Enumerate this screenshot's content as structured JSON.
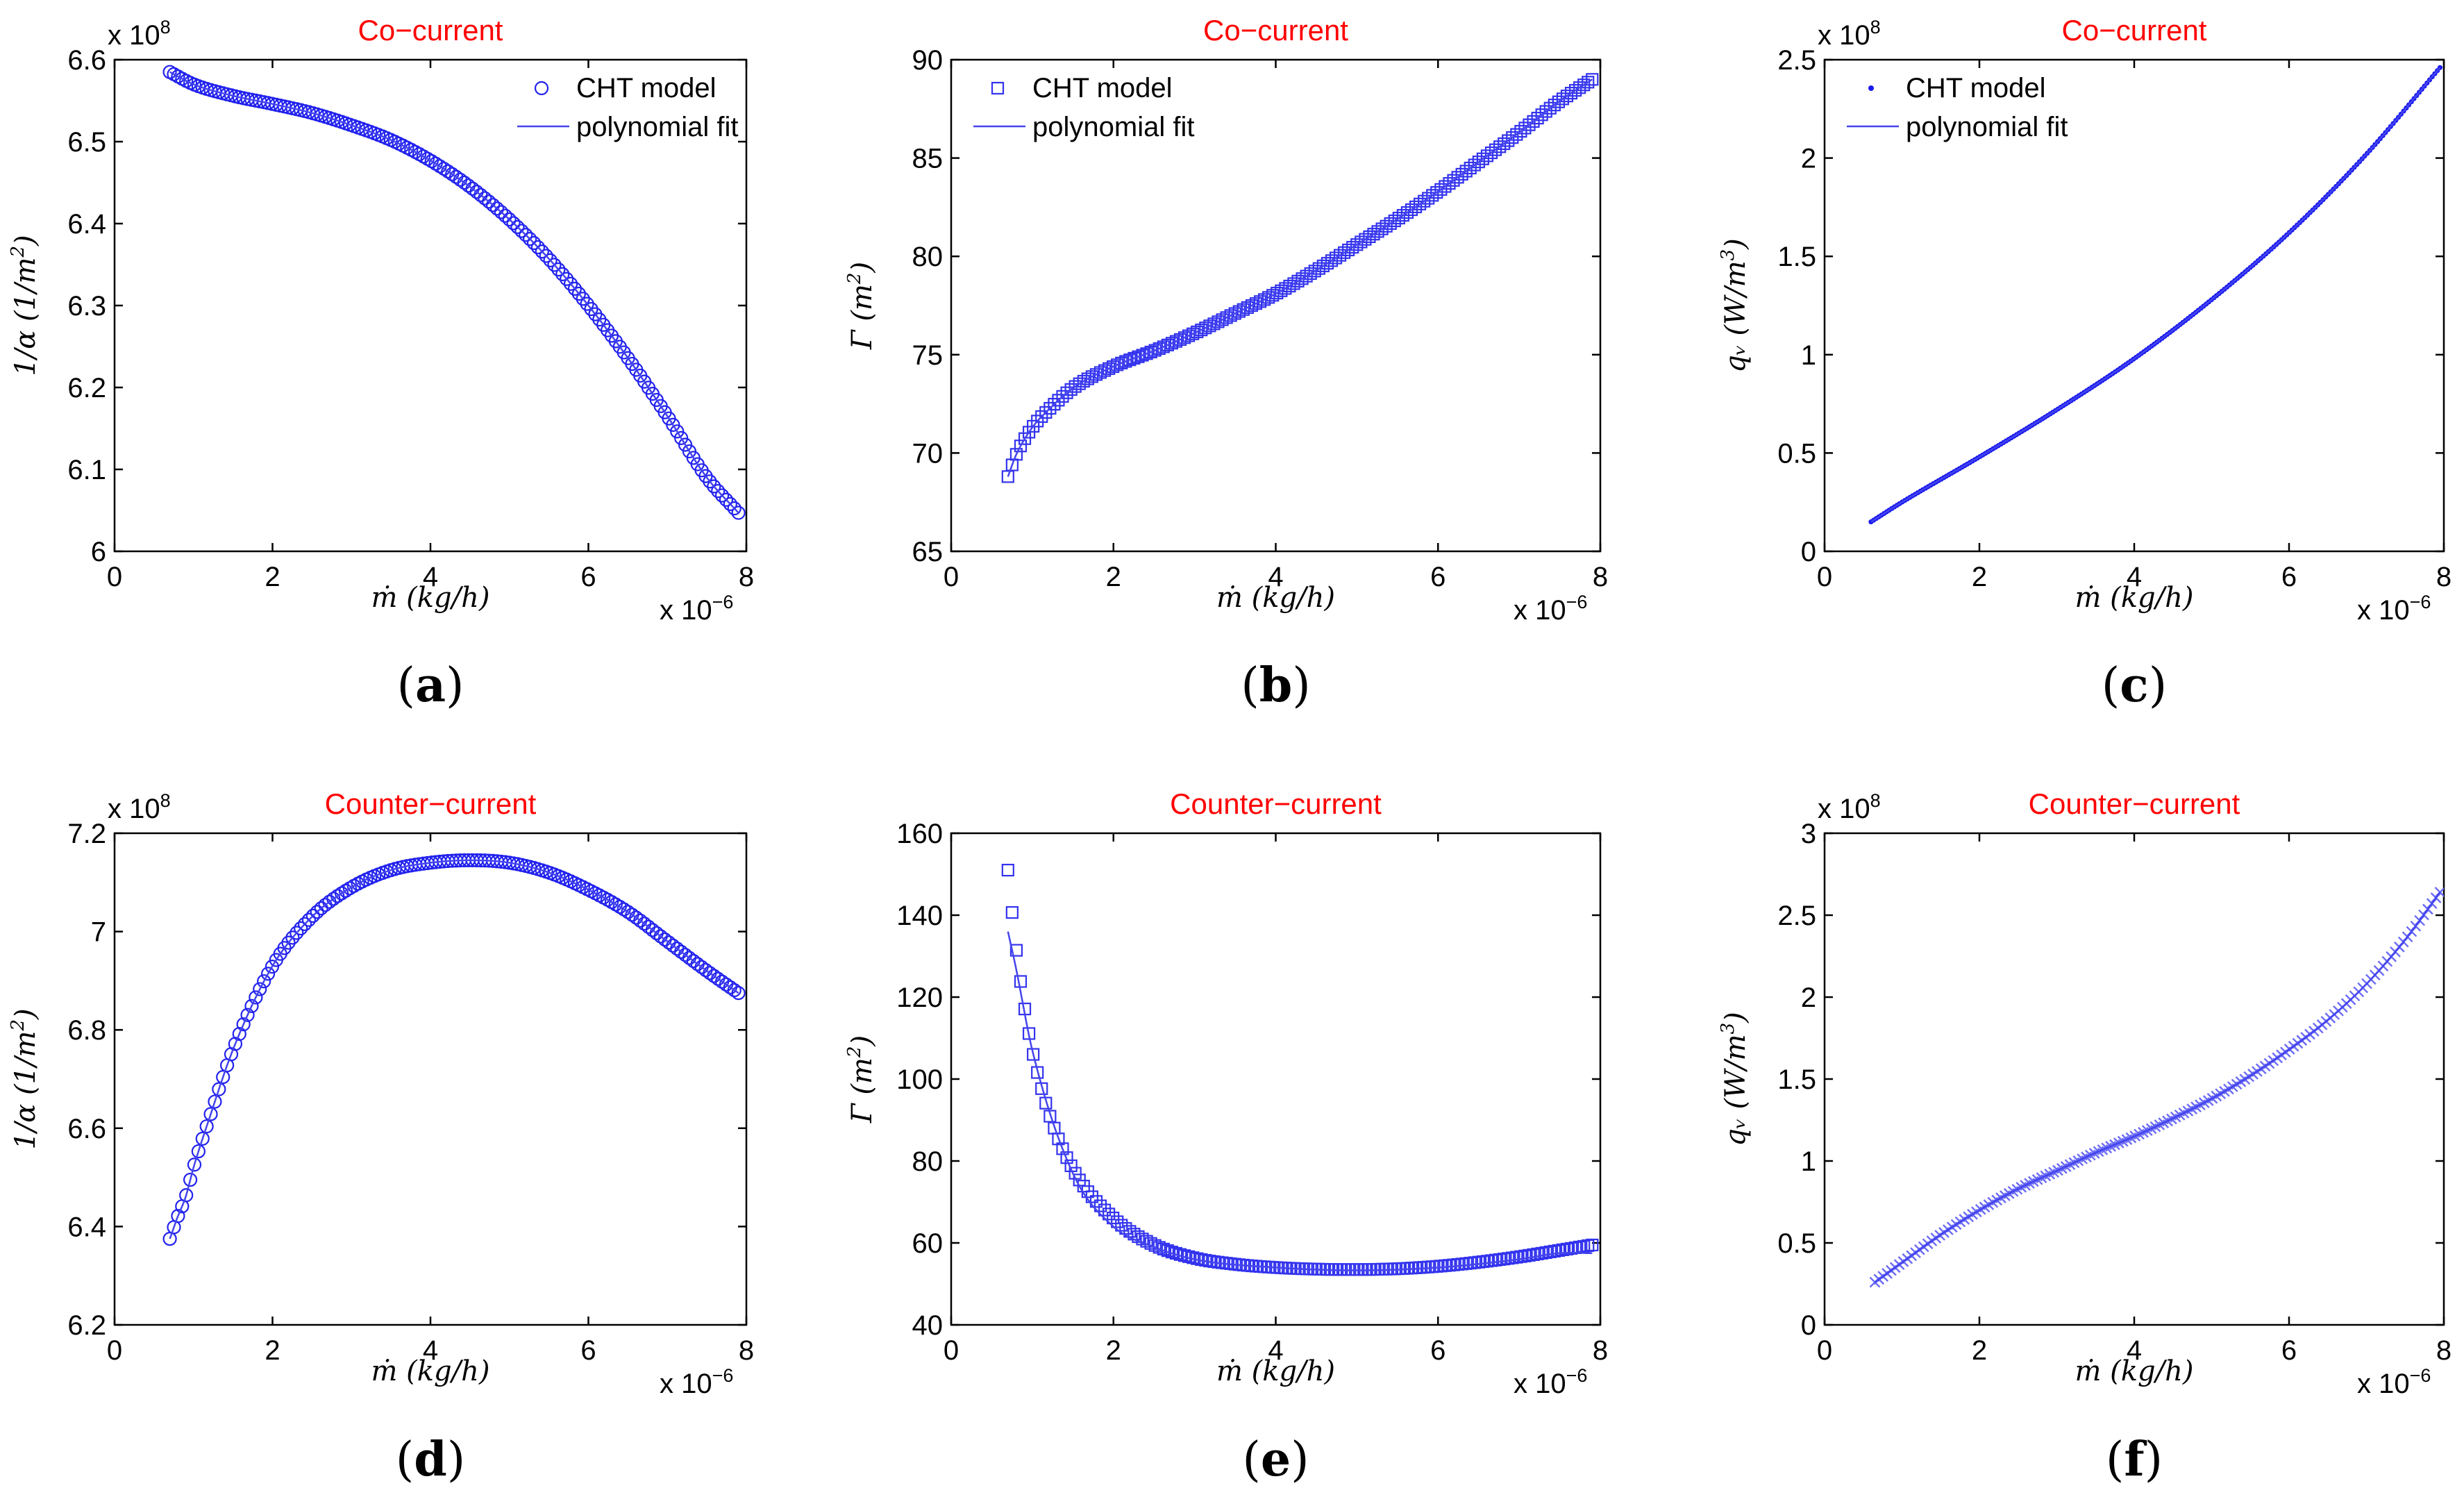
{
  "figure": {
    "panels": [
      {
        "id": "a",
        "letter": "a",
        "title": "Co−current",
        "ylabel_main": "(1/m",
        "ylabel_sup": "2",
        "ylabel_tail": ")",
        "ylabel_prefix": "1/α",
        "xlabel": "ṁ (kg/h)",
        "x_exponent": "x 10",
        "x_exponent_power": "−6",
        "y_exponent": "x 10",
        "y_exponent_power": "8",
        "marker": "circle",
        "legend": [
          "CHT model",
          "polynomial fit"
        ]
      },
      {
        "id": "b",
        "letter": "b",
        "title": "Co−current",
        "ylabel_main": "Γ (m",
        "ylabel_sup": "2",
        "ylabel_tail": ")",
        "ylabel_prefix": "",
        "xlabel": "ṁ (kg/h)",
        "x_exponent": "x 10",
        "x_exponent_power": "−6",
        "y_exponent": "",
        "y_exponent_power": "",
        "marker": "square",
        "legend": [
          "CHT model",
          "polynomial fit"
        ]
      },
      {
        "id": "c",
        "letter": "c",
        "title": "Co−current",
        "ylabel_main": "qᵥ (W/m",
        "ylabel_sup": "3",
        "ylabel_tail": ")",
        "ylabel_prefix": "",
        "xlabel": "ṁ (kg/h)",
        "x_exponent": "x 10",
        "x_exponent_power": "−6",
        "y_exponent": "x 10",
        "y_exponent_power": "8",
        "marker": "dot",
        "legend": [
          "CHT model",
          "polynomial fit"
        ]
      },
      {
        "id": "d",
        "letter": "d",
        "title": "Counter−current",
        "ylabel_main": "(1/m",
        "ylabel_sup": "2",
        "ylabel_tail": ")",
        "ylabel_prefix": "1/α",
        "xlabel": "ṁ (kg/h)",
        "x_exponent": "x 10",
        "x_exponent_power": "−6",
        "y_exponent": "x 10",
        "y_exponent_power": "8",
        "marker": "circle",
        "legend": []
      },
      {
        "id": "e",
        "letter": "e",
        "title": "Counter−current",
        "ylabel_main": "Γ (m",
        "ylabel_sup": "2",
        "ylabel_tail": ")",
        "ylabel_prefix": "",
        "xlabel": "ṁ (kg/h)",
        "x_exponent": "x 10",
        "x_exponent_power": "−6",
        "y_exponent": "",
        "y_exponent_power": "",
        "marker": "square",
        "legend": []
      },
      {
        "id": "f",
        "letter": "f",
        "title": "Counter−current",
        "ylabel_main": "qᵥ (W/m",
        "ylabel_sup": "3",
        "ylabel_tail": ")",
        "ylabel_prefix": "",
        "xlabel": "ṁ (kg/h)",
        "x_exponent": "x 10",
        "x_exponent_power": "−6",
        "y_exponent": "x 10",
        "y_exponent_power": "8",
        "marker": "x",
        "legend": []
      }
    ]
  },
  "chart_data": [
    {
      "type": "scatter",
      "panel": "a",
      "title": "Co−current",
      "xlabel": "ṁ (kg/h) x 10^-6",
      "ylabel": "1/α (1/m^2) x 10^8",
      "xlim": [
        0,
        8
      ],
      "ylim": [
        6.0,
        6.6
      ],
      "xticks": [
        0,
        2,
        4,
        6,
        8
      ],
      "yticks": [
        6.0,
        6.1,
        6.2,
        6.3,
        6.4,
        6.5,
        6.6
      ],
      "ytick_labels": [
        "6",
        "6.1",
        "6.2",
        "6.3",
        "6.4",
        "6.5",
        "6.6"
      ],
      "x_range": [
        0.7,
        7.9
      ],
      "n_points": 140,
      "series": [
        {
          "name": "CHT model",
          "x": [
            0.7,
            1.0,
            1.5,
            2.0,
            2.5,
            3.0,
            3.5,
            4.0,
            4.5,
            5.0,
            5.5,
            6.0,
            6.5,
            7.0,
            7.5,
            7.9
          ],
          "values": [
            6.585,
            6.57,
            6.556,
            6.546,
            6.535,
            6.52,
            6.502,
            6.477,
            6.445,
            6.405,
            6.357,
            6.3,
            6.236,
            6.165,
            6.09,
            6.047
          ]
        },
        {
          "name": "polynomial fit",
          "x": [
            0.7,
            1.0,
            1.5,
            2.0,
            2.5,
            3.0,
            3.5,
            4.0,
            4.5,
            5.0,
            5.5,
            6.0,
            6.5,
            7.0,
            7.5,
            7.9
          ],
          "values": [
            6.585,
            6.57,
            6.556,
            6.546,
            6.535,
            6.52,
            6.502,
            6.477,
            6.445,
            6.405,
            6.357,
            6.3,
            6.236,
            6.165,
            6.09,
            6.047
          ]
        }
      ]
    },
    {
      "type": "scatter",
      "panel": "b",
      "title": "Co−current",
      "xlabel": "ṁ (kg/h) x 10^-6",
      "ylabel": "Γ (m^2)",
      "xlim": [
        0,
        8
      ],
      "ylim": [
        65,
        90
      ],
      "xticks": [
        0,
        2,
        4,
        6,
        8
      ],
      "yticks": [
        65,
        70,
        75,
        80,
        85,
        90
      ],
      "ytick_labels": [
        "65",
        "70",
        "75",
        "80",
        "85",
        "90"
      ],
      "x_range": [
        0.7,
        7.9
      ],
      "n_points": 140,
      "series": [
        {
          "name": "CHT model",
          "x": [
            0.7,
            0.8,
            1.0,
            1.2,
            1.5,
            2.0,
            2.5,
            3.0,
            3.5,
            4.0,
            4.5,
            5.0,
            5.5,
            6.0,
            6.5,
            7.0,
            7.5,
            7.9
          ],
          "values": [
            68.8,
            69.9,
            71.3,
            72.2,
            73.3,
            74.4,
            75.2,
            76.1,
            77.1,
            78.1,
            79.3,
            80.6,
            81.9,
            83.3,
            84.8,
            86.3,
            87.9,
            89.0
          ]
        },
        {
          "name": "polynomial fit",
          "x": [
            0.7,
            0.8,
            1.0,
            1.2,
            1.5,
            2.0,
            2.5,
            3.0,
            3.5,
            4.0,
            4.5,
            5.0,
            5.5,
            6.0,
            6.5,
            7.0,
            7.5,
            7.9
          ],
          "values": [
            68.8,
            69.9,
            71.3,
            72.2,
            73.3,
            74.4,
            75.2,
            76.1,
            77.1,
            78.1,
            79.3,
            80.6,
            81.9,
            83.3,
            84.8,
            86.3,
            87.9,
            89.0
          ]
        }
      ]
    },
    {
      "type": "scatter",
      "panel": "c",
      "title": "Co−current",
      "xlabel": "ṁ (kg/h) x 10^-6",
      "ylabel": "q_v (W/m^3) x 10^8",
      "xlim": [
        0,
        8
      ],
      "ylim": [
        0,
        2.5
      ],
      "xticks": [
        0,
        2,
        4,
        6,
        8
      ],
      "yticks": [
        0,
        0.5,
        1.0,
        1.5,
        2.0,
        2.5
      ],
      "ytick_labels": [
        "0",
        "0.5",
        "1",
        "1.5",
        "2",
        "2.5"
      ],
      "x_range": [
        0.6,
        7.95
      ],
      "n_points": 220,
      "series": [
        {
          "name": "CHT model",
          "x": [
            0.6,
            1.0,
            2.0,
            3.0,
            4.0,
            5.0,
            6.0,
            7.0,
            7.95
          ],
          "values": [
            0.15,
            0.25,
            0.48,
            0.72,
            0.98,
            1.28,
            1.62,
            2.02,
            2.46
          ]
        },
        {
          "name": "polynomial fit",
          "x": [
            0.6,
            1.0,
            2.0,
            3.0,
            4.0,
            5.0,
            6.0,
            7.0,
            7.95
          ],
          "values": [
            0.15,
            0.25,
            0.48,
            0.72,
            0.98,
            1.28,
            1.62,
            2.02,
            2.46
          ]
        }
      ]
    },
    {
      "type": "scatter",
      "panel": "d",
      "title": "Counter−current",
      "xlabel": "ṁ (kg/h) x 10^-6",
      "ylabel": "1/α (1/m^2) x 10^8",
      "xlim": [
        0,
        8
      ],
      "ylim": [
        6.2,
        7.2
      ],
      "xticks": [
        0,
        2,
        4,
        6,
        8
      ],
      "yticks": [
        6.2,
        6.4,
        6.6,
        6.8,
        7.0,
        7.2
      ],
      "ytick_labels": [
        "6.2",
        "6.4",
        "6.6",
        "6.8",
        "7",
        "7.2"
      ],
      "x_range": [
        0.7,
        7.9
      ],
      "n_points": 140,
      "series": [
        {
          "name": "CHT model",
          "x": [
            0.7,
            0.8,
            0.9,
            1.0,
            1.2,
            1.5,
            2.0,
            2.5,
            3.0,
            3.5,
            4.0,
            4.5,
            5.0,
            5.5,
            6.0,
            6.5,
            7.0,
            7.5,
            7.9
          ],
          "values": [
            6.375,
            6.42,
            6.46,
            6.52,
            6.62,
            6.76,
            6.93,
            7.03,
            7.09,
            7.125,
            7.14,
            7.145,
            7.14,
            7.12,
            7.085,
            7.04,
            6.98,
            6.92,
            6.875
          ]
        },
        {
          "name": "polynomial fit",
          "x": [
            0.7,
            0.8,
            0.9,
            1.0,
            1.2,
            1.5,
            2.0,
            2.5,
            3.0,
            3.5,
            4.0,
            4.5,
            5.0,
            5.5,
            6.0,
            6.5,
            7.0,
            7.5,
            7.9
          ],
          "values": [
            6.375,
            6.42,
            6.46,
            6.52,
            6.62,
            6.76,
            6.93,
            7.03,
            7.09,
            7.125,
            7.14,
            7.145,
            7.14,
            7.12,
            7.085,
            7.04,
            6.98,
            6.92,
            6.875
          ]
        }
      ]
    },
    {
      "type": "scatter",
      "panel": "e",
      "title": "Counter−current",
      "xlabel": "ṁ (kg/h) x 10^-6",
      "ylabel": "Γ (m^2)",
      "xlim": [
        0,
        8
      ],
      "ylim": [
        40,
        160
      ],
      "xticks": [
        0,
        2,
        4,
        6,
        8
      ],
      "yticks": [
        40,
        60,
        80,
        100,
        120,
        140,
        160
      ],
      "ytick_labels": [
        "40",
        "60",
        "80",
        "100",
        "120",
        "140",
        "160"
      ],
      "x_range": [
        0.7,
        7.9
      ],
      "n_points": 140,
      "series": [
        {
          "name": "CHT model",
          "x": [
            0.7,
            0.75,
            0.8,
            0.9,
            1.0,
            1.2,
            1.5,
            2.0,
            2.5,
            3.0,
            3.5,
            4.0,
            4.5,
            5.0,
            5.5,
            6.0,
            6.5,
            7.0,
            7.5,
            7.9
          ],
          "values": [
            151,
            141,
            132,
            118,
            107,
            92,
            78,
            66,
            59.5,
            56.3,
            54.8,
            54.0,
            53.6,
            53.5,
            53.7,
            54.3,
            55.3,
            56.6,
            58.2,
            59.5
          ]
        },
        {
          "name": "polynomial fit",
          "x": [
            0.7,
            0.8,
            1.0,
            1.5,
            2.0,
            2.5,
            3.0,
            4.0,
            5.0,
            6.0,
            7.0,
            7.5,
            7.9
          ],
          "values": [
            136,
            127,
            107,
            77,
            64,
            59,
            56,
            54,
            53.3,
            54,
            56,
            57.5,
            57.5
          ]
        }
      ]
    },
    {
      "type": "scatter",
      "panel": "f",
      "title": "Counter−current",
      "xlabel": "ṁ (kg/h) x 10^-6",
      "ylabel": "q_v (W/m^3) x 10^8",
      "xlim": [
        0,
        8
      ],
      "ylim": [
        0,
        3.0
      ],
      "xticks": [
        0,
        2,
        4,
        6,
        8
      ],
      "yticks": [
        0,
        0.5,
        1.0,
        1.5,
        2.0,
        2.5,
        3.0
      ],
      "ytick_labels": [
        "0",
        "0.5",
        "1",
        "1.5",
        "2",
        "2.5",
        "3"
      ],
      "x_range": [
        0.65,
        7.95
      ],
      "n_points": 140,
      "series": [
        {
          "name": "CHT model",
          "x": [
            0.65,
            1.0,
            1.5,
            2.0,
            2.5,
            3.0,
            3.5,
            4.0,
            4.5,
            5.0,
            5.5,
            6.0,
            6.5,
            7.0,
            7.5,
            7.95
          ],
          "values": [
            0.26,
            0.38,
            0.55,
            0.7,
            0.83,
            0.94,
            1.05,
            1.15,
            1.26,
            1.38,
            1.52,
            1.68,
            1.86,
            2.08,
            2.35,
            2.64
          ]
        },
        {
          "name": "polynomial fit",
          "x": [
            0.65,
            1.0,
            1.5,
            2.0,
            2.5,
            3.0,
            3.5,
            4.0,
            4.5,
            5.0,
            5.5,
            6.0,
            6.5,
            7.0,
            7.5,
            7.95
          ],
          "values": [
            0.26,
            0.38,
            0.55,
            0.7,
            0.83,
            0.94,
            1.05,
            1.15,
            1.26,
            1.38,
            1.52,
            1.68,
            1.86,
            2.08,
            2.35,
            2.64
          ]
        }
      ]
    }
  ]
}
